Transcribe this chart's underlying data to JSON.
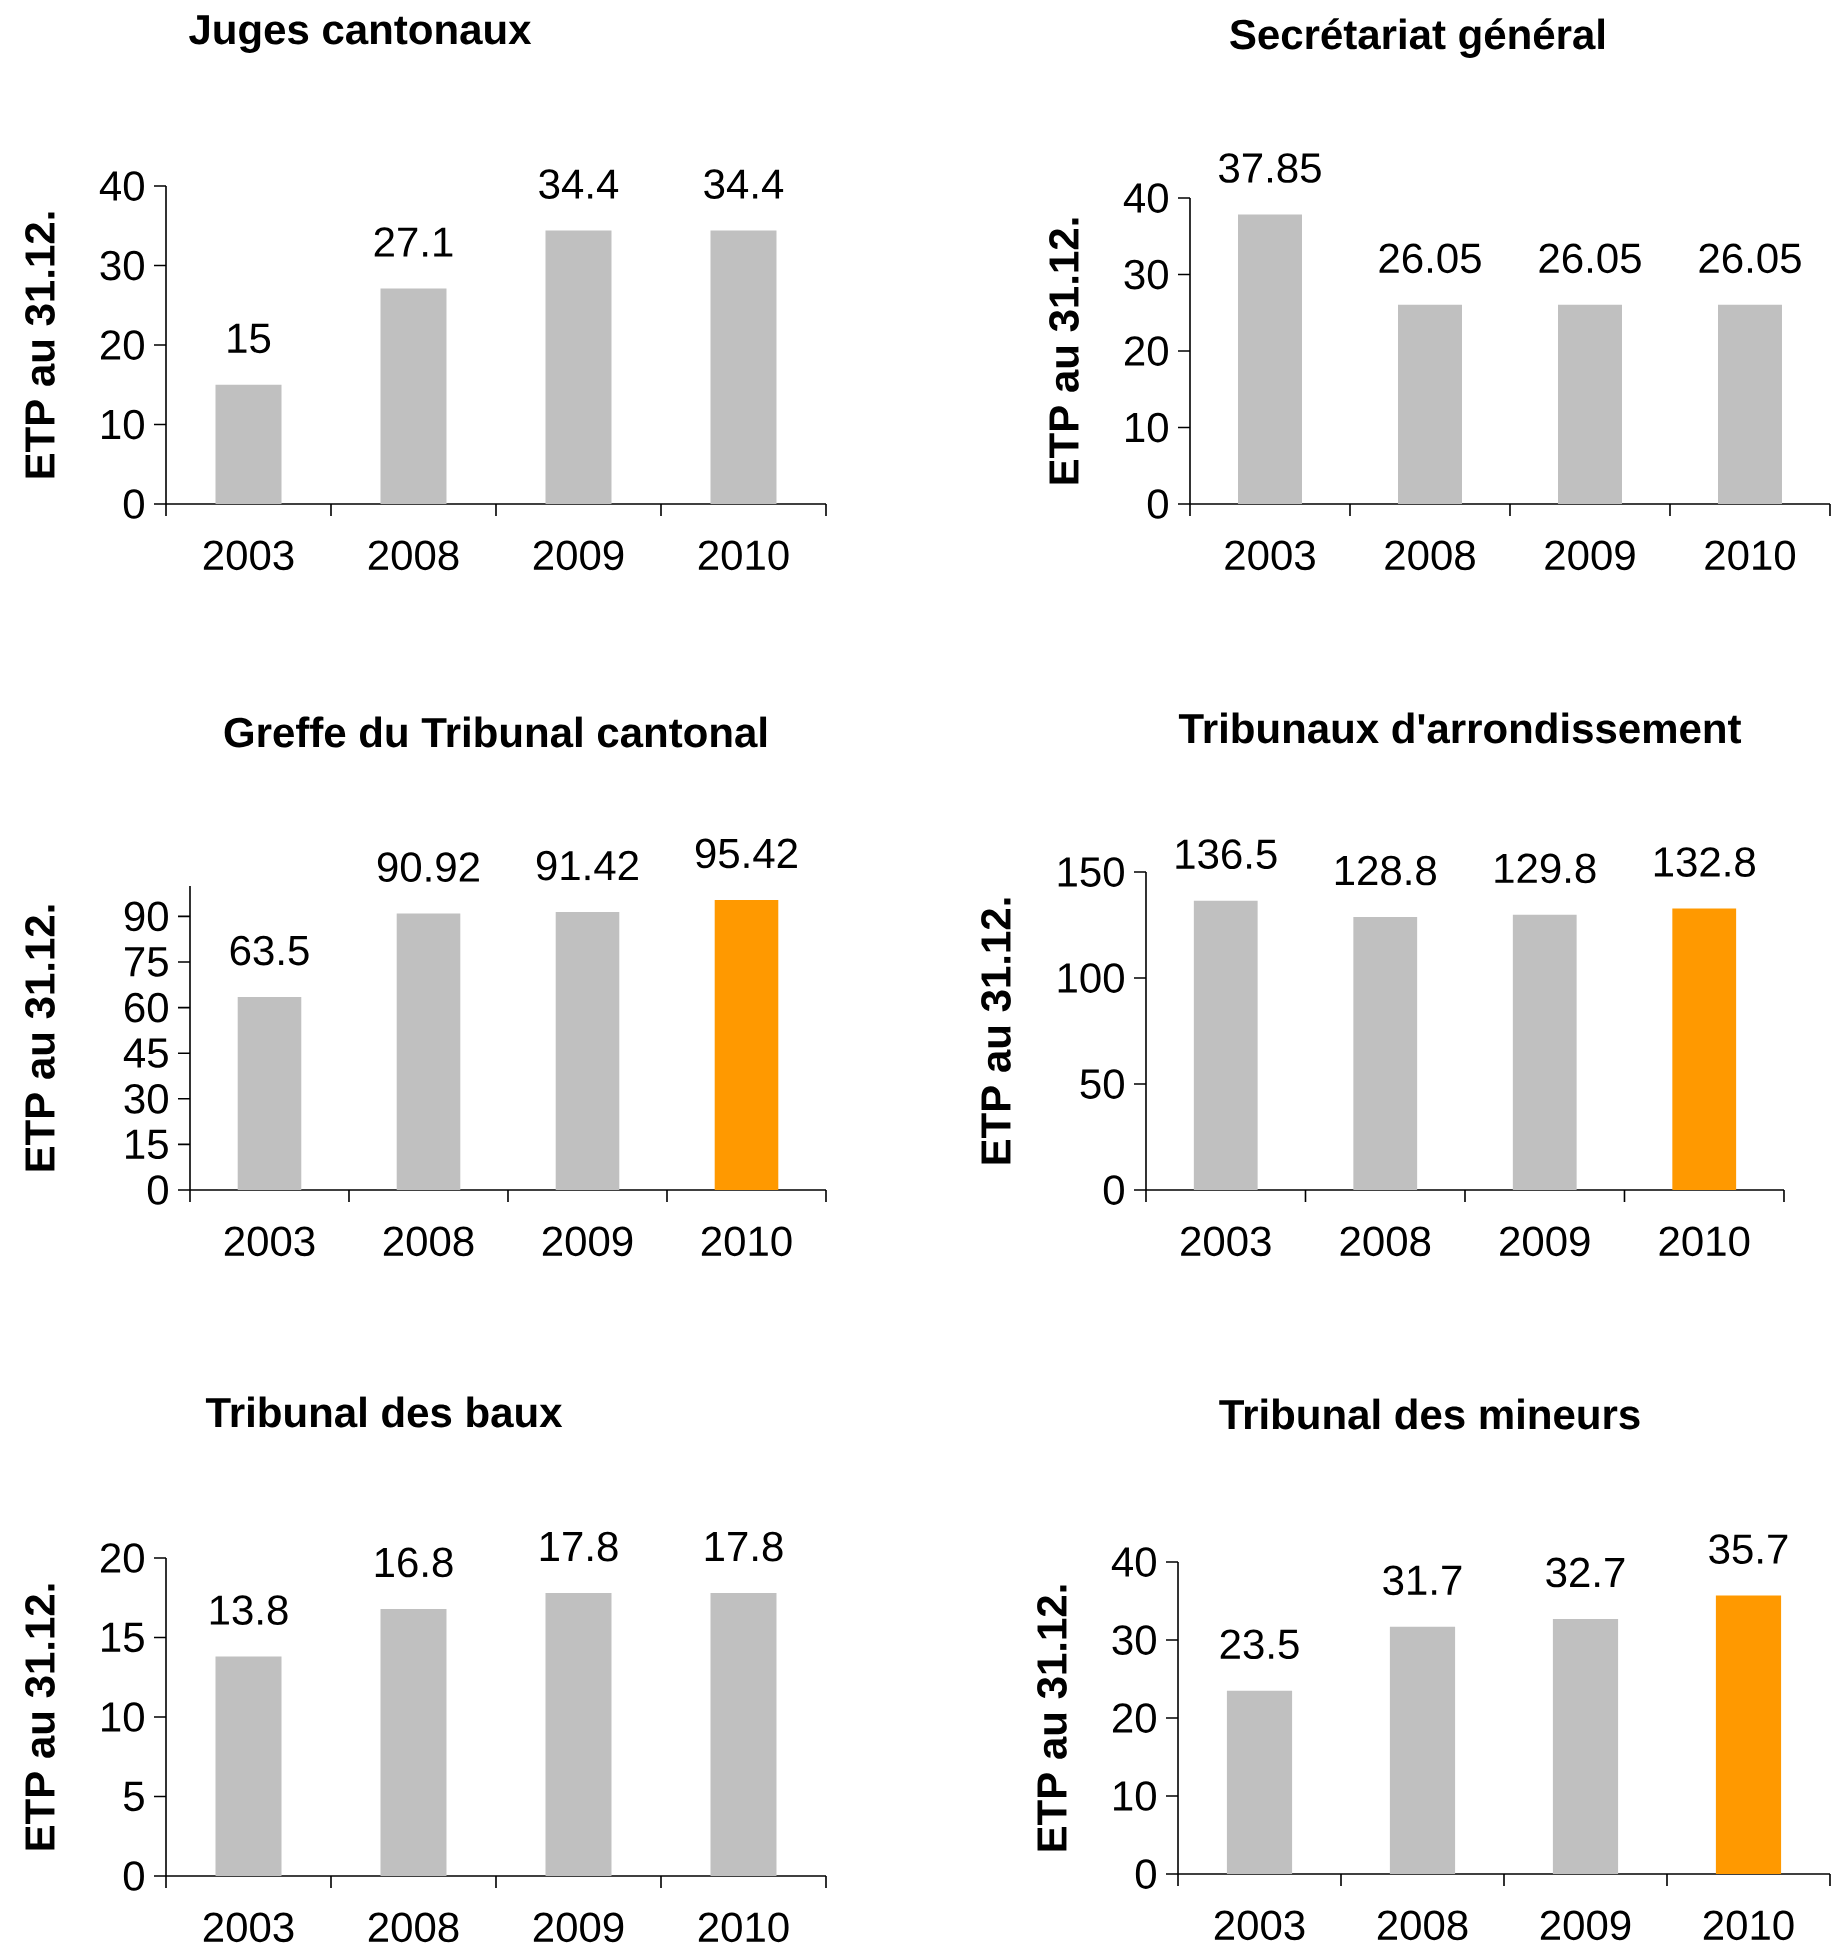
{
  "chart_data": [
    {
      "type": "bar",
      "title": "Juges cantonaux",
      "ylabel": "ETP au 31.12.",
      "categories": [
        "2003",
        "2008",
        "2009",
        "2010"
      ],
      "values": [
        15,
        27.1,
        34.4,
        34.4
      ],
      "colors": [
        "#c0c0c0",
        "#c0c0c0",
        "#c0c0c0",
        "#c0c0c0"
      ],
      "ylim": [
        0,
        40
      ],
      "yticks": [
        0,
        10,
        20,
        30,
        40
      ],
      "data_labels": true
    },
    {
      "type": "bar",
      "title": "Secrétariat général",
      "ylabel": "ETP au 31.12.",
      "categories": [
        "2003",
        "2008",
        "2009",
        "2010"
      ],
      "values": [
        37.85,
        26.05,
        26.05,
        26.05
      ],
      "colors": [
        "#c0c0c0",
        "#c0c0c0",
        "#c0c0c0",
        "#c0c0c0"
      ],
      "ylim": [
        0,
        40
      ],
      "yticks": [
        0,
        10,
        20,
        30,
        40
      ],
      "data_labels": true
    },
    {
      "type": "bar",
      "title": "Greffe du Tribunal cantonal",
      "ylabel": "ETP au 31.12.",
      "categories": [
        "2003",
        "2008",
        "2009",
        "2010"
      ],
      "values": [
        63.5,
        90.92,
        91.42,
        95.42
      ],
      "colors": [
        "#c0c0c0",
        "#c0c0c0",
        "#c0c0c0",
        "#ff9900"
      ],
      "ylim": [
        0,
        100
      ],
      "yticks": [
        0,
        15,
        30,
        45,
        60,
        75,
        90
      ],
      "data_labels": true
    },
    {
      "type": "bar",
      "title": "Tribunaux d'arrondissement",
      "ylabel": "ETP au 31.12.",
      "categories": [
        "2003",
        "2008",
        "2009",
        "2010"
      ],
      "values": [
        136.5,
        128.8,
        129.8,
        132.8
      ],
      "colors": [
        "#c0c0c0",
        "#c0c0c0",
        "#c0c0c0",
        "#ff9900"
      ],
      "ylim": [
        0,
        150
      ],
      "yticks": [
        0,
        50,
        100,
        150
      ],
      "data_labels": true
    },
    {
      "type": "bar",
      "title": "Tribunal des baux",
      "ylabel": "ETP au 31.12.",
      "categories": [
        "2003",
        "2008",
        "2009",
        "2010"
      ],
      "values": [
        13.8,
        16.8,
        17.8,
        17.8
      ],
      "colors": [
        "#c0c0c0",
        "#c0c0c0",
        "#c0c0c0",
        "#c0c0c0"
      ],
      "ylim": [
        0,
        20
      ],
      "yticks": [
        0,
        5,
        10,
        15,
        20
      ],
      "data_labels": true
    },
    {
      "type": "bar",
      "title": "Tribunal des mineurs",
      "ylabel": "ETP au 31.12.",
      "categories": [
        "2003",
        "2008",
        "2009",
        "2010"
      ],
      "values": [
        23.5,
        31.7,
        32.7,
        35.7
      ],
      "colors": [
        "#c0c0c0",
        "#c0c0c0",
        "#c0c0c0",
        "#ff9900"
      ],
      "ylim": [
        0,
        40
      ],
      "yticks": [
        0,
        10,
        20,
        30,
        40
      ],
      "data_labels": true
    }
  ]
}
